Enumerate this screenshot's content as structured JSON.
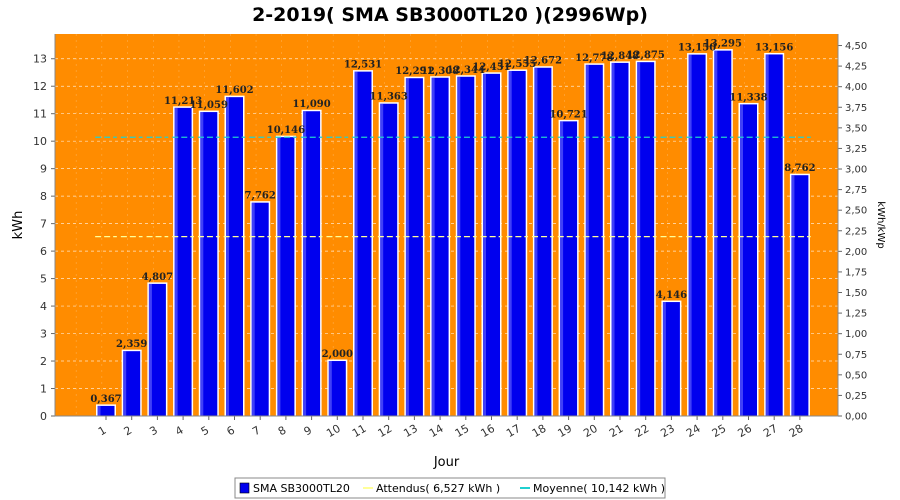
{
  "colors": {
    "plot_background": "#FF8C00",
    "bar": "#0000EE",
    "attendus": "#FFFF99",
    "moyenne": "#20D0D0",
    "grid": "#FFFFFF"
  },
  "chart_data": {
    "type": "bar",
    "title": "2-2019( SMA SB3000TL20 )(2996Wp)",
    "xlabel": "Jour",
    "ylabel": "kWh",
    "ylabel_right": "kWh/kWp",
    "ylim": [
      0,
      13.9
    ],
    "ylim_right": [
      0,
      4.64
    ],
    "yticks": [
      0,
      1,
      2,
      3,
      4,
      5,
      6,
      7,
      8,
      9,
      10,
      11,
      12,
      13
    ],
    "yticks_right": [
      "0,00",
      "0,25",
      "0,50",
      "0,75",
      "1,00",
      "1,25",
      "1,50",
      "1,75",
      "2,00",
      "2,25",
      "2,50",
      "2,75",
      "3,00",
      "3,25",
      "3,50",
      "3,75",
      "4,00",
      "4,25",
      "4,50"
    ],
    "grid": true,
    "categories": [
      "1",
      "2",
      "3",
      "4",
      "5",
      "6",
      "7",
      "8",
      "9",
      "10",
      "11",
      "12",
      "13",
      "14",
      "15",
      "16",
      "17",
      "18",
      "19",
      "20",
      "21",
      "22",
      "23",
      "24",
      "25",
      "26",
      "27",
      "28"
    ],
    "series": [
      {
        "name": "SMA SB3000TL20",
        "values": [
          0.367,
          2.359,
          4.807,
          11.213,
          11.059,
          11.602,
          7.762,
          10.146,
          11.09,
          2.0,
          12.531,
          11.363,
          12.291,
          12.308,
          12.344,
          12.451,
          12.555,
          12.672,
          10.721,
          12.778,
          12.848,
          12.875,
          4.146,
          13.15,
          13.295,
          11.338,
          13.156,
          8.762
        ],
        "labels": [
          "0,367",
          "2,359",
          "4,807",
          "11,213",
          "11,059",
          "11,602",
          "7,762",
          "10,146",
          "11,090",
          "2,000",
          "12,531",
          "11,363",
          "12,291",
          "12,308",
          "12,344",
          "12,451",
          "12,555",
          "12,672",
          "10,721",
          "12,778",
          "12,848",
          "12,875",
          "4,146",
          "13,150",
          "13,295",
          "11,338",
          "13,156",
          "8,762"
        ]
      }
    ],
    "lines": [
      {
        "name": "Attendus( 6,527 kWh )",
        "value": 6.527
      },
      {
        "name": "Moyenne( 10,142 kWh )",
        "value": 10.142
      }
    ],
    "legend": {
      "placement": "bottom",
      "entries": [
        "SMA SB3000TL20",
        "Attendus( 6,527 kWh )",
        "Moyenne( 10,142 kWh )"
      ]
    }
  }
}
